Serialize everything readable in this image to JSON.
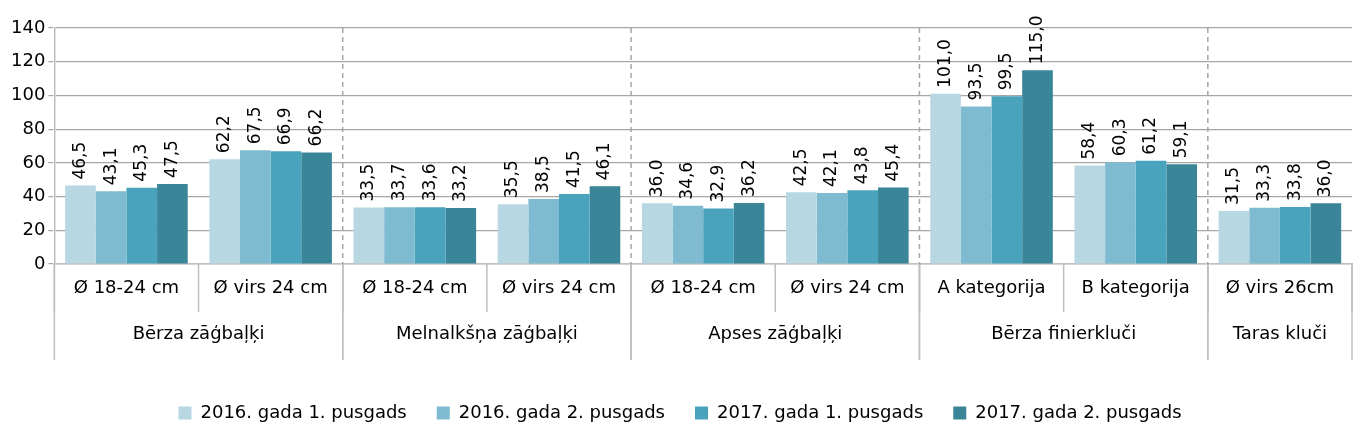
{
  "chart_data": {
    "type": "bar",
    "categories": [
      "Ø 18-24 cm",
      "Ø virs 24 cm",
      "Ø 18-24 cm",
      "Ø virs 24 cm",
      "Ø 18-24 cm",
      "Ø virs 24 cm",
      "A kategorija",
      "B kategorija",
      "Ø virs 26cm"
    ],
    "annotations": [
      "Bērza zāģbaļķi",
      "Melnalkšņa zāģbaļķi",
      "Apses zāģbaļķi",
      "Bērza finierkluči",
      "Taras kluči"
    ],
    "series": [
      {
        "name": "2016. gada 1. pusgads",
        "color": "#b7d7e2",
        "values": [
          46.5,
          62.2,
          33.5,
          35.5,
          36.0,
          42.5,
          101.0,
          58.4,
          31.5
        ],
        "value_labels": [
          "46,5",
          "62,2",
          "33,5",
          "35,5",
          "36,0",
          "42,5",
          "101,0",
          "58,4",
          "31,5"
        ]
      },
      {
        "name": "2016. gada 2. pusgads",
        "color": "#7fbbd0",
        "values": [
          43.1,
          67.5,
          33.7,
          38.5,
          34.6,
          42.1,
          93.5,
          60.3,
          33.3
        ],
        "value_labels": [
          "43,1",
          "67,5",
          "33,7",
          "38,5",
          "34,6",
          "42,1",
          "93,5",
          "60,3",
          "33,3"
        ]
      },
      {
        "name": "2017. gada 1. pusgads",
        "color": "#4aa3bc",
        "values": [
          45.3,
          66.9,
          33.6,
          41.5,
          32.9,
          43.8,
          99.5,
          61.2,
          33.8
        ],
        "value_labels": [
          "45,3",
          "66,9",
          "33,6",
          "41,5",
          "32,9",
          "43,8",
          "99,5",
          "61,2",
          "33,8"
        ]
      },
      {
        "name": "2017. gada 2. pusgads",
        "color": "#3a8597",
        "values": [
          47.5,
          66.2,
          33.2,
          46.1,
          36.2,
          45.4,
          115.0,
          59.1,
          36.0
        ],
        "value_labels": [
          "47,5",
          "66,2",
          "33,2",
          "46,1",
          "36,2",
          "45,4",
          "115,0",
          "59,1",
          "36,0"
        ]
      }
    ],
    "ylim": [
      0,
      140
    ],
    "yticks": [
      0,
      20,
      40,
      60,
      80,
      100,
      120,
      140
    ],
    "grid": "y",
    "legend": "bottom"
  }
}
